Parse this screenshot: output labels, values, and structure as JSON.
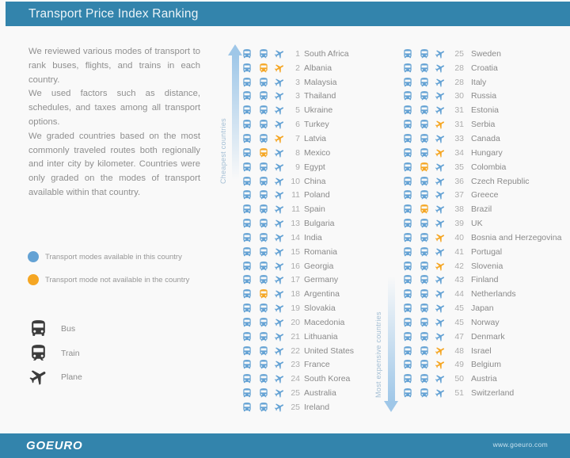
{
  "header": {
    "title": "Transport Price Index Ranking"
  },
  "intro": {
    "p1": "We reviewed various modes of transport to rank buses, flights, and trains in each country.",
    "p2": "We used factors such as distance, schedules, and taxes among all transport options.",
    "p3": "We graded countries based on the most commonly traveled routes both regionally and inter city by kilometer.  Countries were only graded on the modes of transport available within that country."
  },
  "legend": {
    "available_label": "Transport modes available in this country",
    "unavailable_label": "Transport mode not available in the country"
  },
  "modes": {
    "bus_label": "Bus",
    "train_label": "Train",
    "plane_label": "Plane"
  },
  "arrows": {
    "cheapest": "Cheapest countries",
    "expensive": "Most expensive countries"
  },
  "colors": {
    "available": "#64a2d4",
    "unavailable": "#f5a623",
    "bar_blue": "#3384ac",
    "arrow_blue": "#9fc7e8",
    "legend_icon_dark": "#3c3c3c"
  },
  "footer": {
    "logo": "GOEURO",
    "url": "www.goeuro.com"
  },
  "chart_data": {
    "type": "table",
    "title": "Transport Price Index Ranking",
    "columns": [
      "rank",
      "country",
      "bus_available",
      "train_available",
      "plane_available"
    ],
    "left": [
      {
        "rank": "1",
        "country": "South Africa",
        "bus": true,
        "train": true,
        "plane": true
      },
      {
        "rank": "2",
        "country": "Albania",
        "bus": true,
        "train": false,
        "plane": false
      },
      {
        "rank": "3",
        "country": "Malaysia",
        "bus": true,
        "train": true,
        "plane": true
      },
      {
        "rank": "3",
        "country": "Thailand",
        "bus": true,
        "train": true,
        "plane": true
      },
      {
        "rank": "5",
        "country": "Ukraine",
        "bus": true,
        "train": true,
        "plane": true
      },
      {
        "rank": "6",
        "country": "Turkey",
        "bus": true,
        "train": true,
        "plane": true
      },
      {
        "rank": "7",
        "country": "Latvia",
        "bus": true,
        "train": true,
        "plane": false
      },
      {
        "rank": "8",
        "country": "Mexico",
        "bus": true,
        "train": false,
        "plane": true
      },
      {
        "rank": "9",
        "country": "Egypt",
        "bus": true,
        "train": true,
        "plane": true
      },
      {
        "rank": "10",
        "country": "China",
        "bus": true,
        "train": true,
        "plane": true
      },
      {
        "rank": "11",
        "country": "Poland",
        "bus": true,
        "train": true,
        "plane": true
      },
      {
        "rank": "11",
        "country": "Spain",
        "bus": true,
        "train": true,
        "plane": true
      },
      {
        "rank": "13",
        "country": "Bulgaria",
        "bus": true,
        "train": true,
        "plane": true
      },
      {
        "rank": "14",
        "country": "India",
        "bus": true,
        "train": true,
        "plane": true
      },
      {
        "rank": "15",
        "country": "Romania",
        "bus": true,
        "train": true,
        "plane": true
      },
      {
        "rank": "16",
        "country": "Georgia",
        "bus": true,
        "train": true,
        "plane": true
      },
      {
        "rank": "17",
        "country": "Germany",
        "bus": true,
        "train": true,
        "plane": true
      },
      {
        "rank": "18",
        "country": "Argentina",
        "bus": true,
        "train": false,
        "plane": true
      },
      {
        "rank": "19",
        "country": "Slovakia",
        "bus": true,
        "train": true,
        "plane": true
      },
      {
        "rank": "20",
        "country": "Macedonia",
        "bus": true,
        "train": true,
        "plane": true
      },
      {
        "rank": "21",
        "country": "Lithuania",
        "bus": true,
        "train": true,
        "plane": true
      },
      {
        "rank": "22",
        "country": "United States",
        "bus": true,
        "train": true,
        "plane": true
      },
      {
        "rank": "23",
        "country": "France",
        "bus": true,
        "train": true,
        "plane": true
      },
      {
        "rank": "24",
        "country": "South Korea",
        "bus": true,
        "train": true,
        "plane": true
      },
      {
        "rank": "25",
        "country": "Australia",
        "bus": true,
        "train": true,
        "plane": true
      },
      {
        "rank": "25",
        "country": "Ireland",
        "bus": true,
        "train": true,
        "plane": true
      }
    ],
    "right": [
      {
        "rank": "25",
        "country": "Sweden",
        "bus": true,
        "train": true,
        "plane": true
      },
      {
        "rank": "28",
        "country": "Croatia",
        "bus": true,
        "train": true,
        "plane": true
      },
      {
        "rank": "28",
        "country": "Italy",
        "bus": true,
        "train": true,
        "plane": true
      },
      {
        "rank": "30",
        "country": "Russia",
        "bus": true,
        "train": true,
        "plane": true
      },
      {
        "rank": "31",
        "country": "Estonia",
        "bus": true,
        "train": true,
        "plane": true
      },
      {
        "rank": "31",
        "country": "Serbia",
        "bus": true,
        "train": true,
        "plane": false
      },
      {
        "rank": "33",
        "country": "Canada",
        "bus": true,
        "train": true,
        "plane": true
      },
      {
        "rank": "34",
        "country": "Hungary",
        "bus": true,
        "train": true,
        "plane": false
      },
      {
        "rank": "35",
        "country": "Colombia",
        "bus": true,
        "train": false,
        "plane": true
      },
      {
        "rank": "36",
        "country": "Czech Republic",
        "bus": true,
        "train": true,
        "plane": true
      },
      {
        "rank": "37",
        "country": "Greece",
        "bus": true,
        "train": true,
        "plane": true
      },
      {
        "rank": "38",
        "country": "Brazil",
        "bus": true,
        "train": false,
        "plane": true
      },
      {
        "rank": "39",
        "country": "UK",
        "bus": true,
        "train": true,
        "plane": true
      },
      {
        "rank": "40",
        "country": "Bosnia and Herzegovina",
        "bus": true,
        "train": true,
        "plane": false
      },
      {
        "rank": "41",
        "country": "Portugal",
        "bus": true,
        "train": true,
        "plane": true
      },
      {
        "rank": "42",
        "country": "Slovenia",
        "bus": true,
        "train": true,
        "plane": false
      },
      {
        "rank": "43",
        "country": "Finland",
        "bus": true,
        "train": true,
        "plane": true
      },
      {
        "rank": "44",
        "country": "Netherlands",
        "bus": true,
        "train": true,
        "plane": true
      },
      {
        "rank": "45",
        "country": "Japan",
        "bus": true,
        "train": true,
        "plane": true
      },
      {
        "rank": "45",
        "country": "Norway",
        "bus": true,
        "train": true,
        "plane": true
      },
      {
        "rank": "47",
        "country": "Denmark",
        "bus": true,
        "train": true,
        "plane": true
      },
      {
        "rank": "48",
        "country": "Israel",
        "bus": true,
        "train": true,
        "plane": false
      },
      {
        "rank": "49",
        "country": "Belgium",
        "bus": true,
        "train": true,
        "plane": false
      },
      {
        "rank": "50",
        "country": "Austria",
        "bus": true,
        "train": true,
        "plane": true
      },
      {
        "rank": "51",
        "country": "Switzerland",
        "bus": true,
        "train": true,
        "plane": true
      }
    ]
  }
}
